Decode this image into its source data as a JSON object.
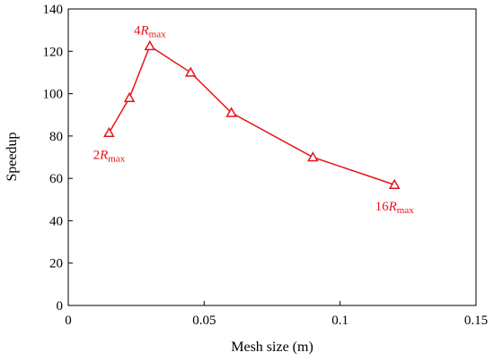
{
  "chart_data": {
    "type": "line",
    "xlabel": "Mesh size (m)",
    "ylabel": "Speedup",
    "xlim": [
      0,
      0.15
    ],
    "ylim": [
      0,
      140
    ],
    "x_ticks": [
      0,
      0.05,
      0.1,
      0.15
    ],
    "x_tick_labels": [
      "0",
      "0.05",
      "0.1",
      "0.15"
    ],
    "y_ticks": [
      0,
      20,
      40,
      60,
      80,
      100,
      120,
      140
    ],
    "y_tick_labels": [
      "0",
      "20",
      "40",
      "60",
      "80",
      "100",
      "120",
      "140"
    ],
    "grid": false,
    "legend": "none",
    "series": [
      {
        "x": [
          0.015,
          0.0225,
          0.03,
          0.045,
          0.06,
          0.09,
          0.12
        ],
        "y": [
          81.5,
          98,
          122.5,
          110,
          91,
          70,
          57
        ],
        "marker": "triangle-open",
        "color": "#e8131b"
      }
    ],
    "annotations": [
      {
        "main": "2",
        "italic": "R",
        "sub": "max",
        "x": 0.015,
        "y": 81.5,
        "placement": "below"
      },
      {
        "main": "4",
        "italic": "R",
        "sub": "max",
        "x": 0.03,
        "y": 122.5,
        "placement": "above"
      },
      {
        "main": "16",
        "italic": "R",
        "sub": "max",
        "x": 0.12,
        "y": 57,
        "placement": "below"
      }
    ]
  }
}
